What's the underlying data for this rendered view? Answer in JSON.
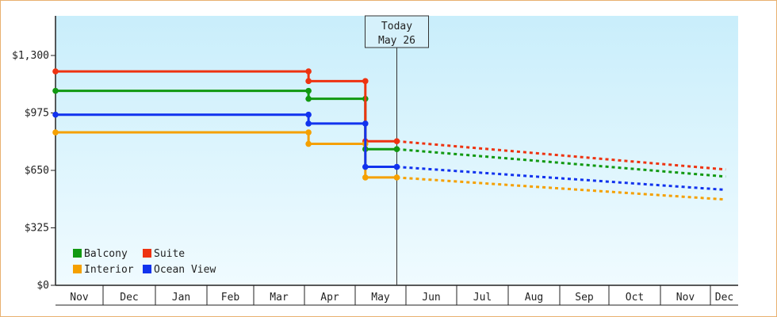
{
  "chart_data": {
    "type": "line",
    "title": "",
    "xlabel": "",
    "ylabel": "",
    "x_months": [
      "Nov",
      "Dec",
      "Jan",
      "Feb",
      "Mar",
      "Apr",
      "May",
      "Jun",
      "Jul",
      "Aug",
      "Sep",
      "Oct",
      "Nov",
      "Dec"
    ],
    "y_ticks": [
      {
        "value": 0,
        "label": "$0"
      },
      {
        "value": 325,
        "label": "$325"
      },
      {
        "value": 650,
        "label": "$650"
      },
      {
        "value": 975,
        "label": "$975"
      },
      {
        "value": 1300,
        "label": "$1,300"
      }
    ],
    "ylim": [
      0,
      1300
    ],
    "today": {
      "line1": "Today",
      "line2": "May 26",
      "x": 6.82
    },
    "legend_position": "bottom-left",
    "series": [
      {
        "name": "Balcony",
        "color": "#119911",
        "points": [
          [
            0,
            1100
          ],
          [
            5.08,
            1100
          ],
          [
            5.08,
            1055
          ],
          [
            6.2,
            1055
          ],
          [
            6.2,
            770
          ],
          [
            6.82,
            770
          ]
        ],
        "forecast": [
          [
            6.82,
            770
          ],
          [
            13.55,
            615
          ]
        ]
      },
      {
        "name": "Suite",
        "color": "#ee3311",
        "points": [
          [
            0,
            1210
          ],
          [
            5.08,
            1210
          ],
          [
            5.08,
            1155
          ],
          [
            6.2,
            1155
          ],
          [
            6.2,
            815
          ],
          [
            6.82,
            815
          ]
        ],
        "forecast": [
          [
            6.82,
            815
          ],
          [
            13.55,
            655
          ]
        ]
      },
      {
        "name": "Interior",
        "color": "#f5a000",
        "points": [
          [
            0,
            865
          ],
          [
            5.08,
            865
          ],
          [
            5.08,
            800
          ],
          [
            6.2,
            800
          ],
          [
            6.2,
            610
          ],
          [
            6.82,
            610
          ]
        ],
        "forecast": [
          [
            6.82,
            610
          ],
          [
            13.55,
            485
          ]
        ]
      },
      {
        "name": "Ocean View",
        "color": "#1133ee",
        "points": [
          [
            0,
            965
          ],
          [
            5.08,
            965
          ],
          [
            5.08,
            915
          ],
          [
            6.2,
            915
          ],
          [
            6.2,
            670
          ],
          [
            6.82,
            670
          ]
        ],
        "forecast": [
          [
            6.82,
            670
          ],
          [
            13.55,
            540
          ]
        ]
      }
    ]
  }
}
